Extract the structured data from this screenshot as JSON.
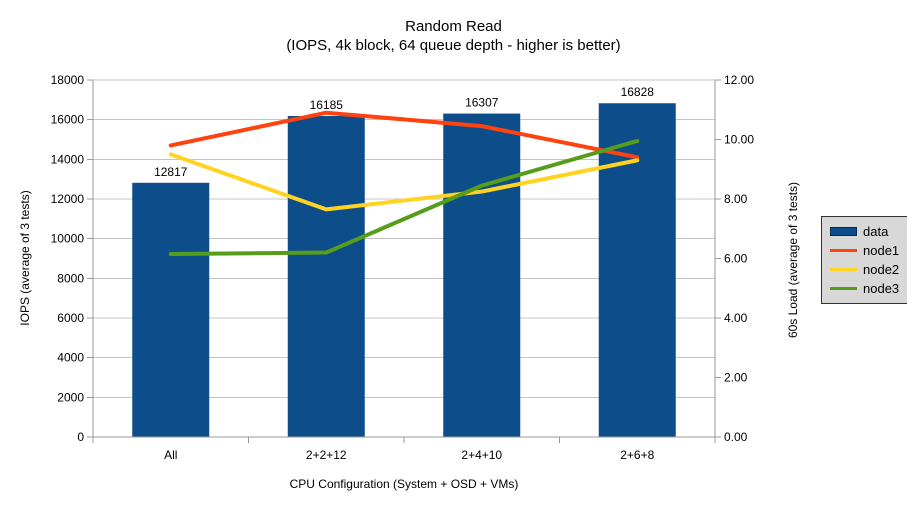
{
  "chart_data": {
    "type": "bar+line",
    "title": "Random Read",
    "subtitle": "(IOPS, 4k block, 64 queue depth - higher is better)",
    "categories": [
      "All",
      "2+2+12",
      "2+4+10",
      "2+6+8"
    ],
    "xlabel": "CPU Configuration (System + OSD + VMs)",
    "left_axis": {
      "label": "IOPS (average of 3 tests)",
      "min": 0,
      "max": 18000,
      "step": 2000,
      "ticks": [
        "0",
        "2000",
        "4000",
        "6000",
        "8000",
        "10000",
        "12000",
        "14000",
        "16000",
        "18000"
      ]
    },
    "right_axis": {
      "label": "60s Load (average of 3 tests)",
      "min": 0,
      "max": 12,
      "step": 2,
      "ticks": [
        "0.00",
        "2.00",
        "4.00",
        "6.00",
        "8.00",
        "10.00",
        "12.00"
      ]
    },
    "bar_series": {
      "name": "data",
      "axis": "left",
      "color": "#0d4e8a",
      "values": [
        12817,
        16185,
        16307,
        16828
      ]
    },
    "line_series": [
      {
        "name": "node1",
        "axis": "right",
        "color": "#ff420e",
        "values": [
          9.8,
          10.9,
          10.45,
          9.4
        ]
      },
      {
        "name": "node2",
        "axis": "right",
        "color": "#ffd320",
        "values": [
          9.5,
          7.65,
          8.25,
          9.3
        ]
      },
      {
        "name": "node3",
        "axis": "right",
        "color": "#579d1c",
        "values": [
          6.15,
          6.2,
          8.45,
          9.95
        ]
      }
    ],
    "legend": {
      "position": "right",
      "entries": [
        {
          "label": "data",
          "marker": "rect",
          "color": "#0d4e8a"
        },
        {
          "label": "node1",
          "marker": "line",
          "color": "#ff420e"
        },
        {
          "label": "node2",
          "marker": "line",
          "color": "#ffd320"
        },
        {
          "label": "node3",
          "marker": "line",
          "color": "#579d1c"
        }
      ]
    },
    "grid": "horizontal-major",
    "style": {
      "grid_color": "#c4c4c4",
      "axis_color": "#9a9a9a",
      "background": "#ffffff",
      "legend_background": "#d8d8d8"
    }
  }
}
